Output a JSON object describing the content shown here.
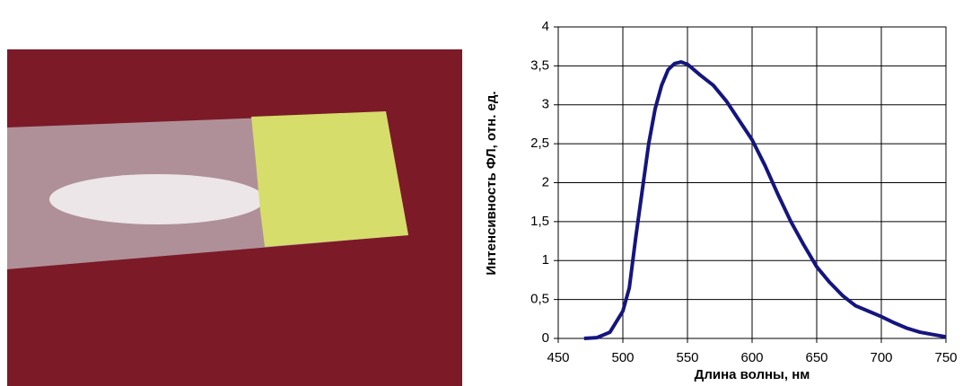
{
  "chart_data": {
    "type": "line",
    "x_label": "Длина волны, нм",
    "y_label": "Интенсивность ФЛ, отн. ед.",
    "x": [
      470,
      480,
      490,
      500,
      505,
      510,
      515,
      520,
      525,
      530,
      535,
      540,
      545,
      550,
      555,
      560,
      570,
      580,
      590,
      600,
      610,
      620,
      630,
      640,
      650,
      660,
      670,
      680,
      690,
      700,
      710,
      720,
      730,
      740,
      750
    ],
    "series": [
      {
        "color": "#15157f",
        "values": [
          0,
          0.01,
          0.08,
          0.35,
          0.65,
          1.3,
          1.9,
          2.5,
          2.95,
          3.25,
          3.45,
          3.53,
          3.55,
          3.52,
          3.45,
          3.38,
          3.25,
          3.05,
          2.8,
          2.55,
          2.22,
          1.85,
          1.5,
          1.2,
          0.92,
          0.72,
          0.55,
          0.42,
          0.35,
          0.28,
          0.2,
          0.13,
          0.08,
          0.05,
          0.02
        ]
      }
    ],
    "xlim": [
      450,
      750
    ],
    "xticks": [
      450,
      500,
      550,
      600,
      650,
      700,
      750
    ],
    "ylim": [
      0,
      4
    ],
    "yticks": [
      0,
      {
        "value": 0.5,
        "label": "0,5"
      },
      1,
      {
        "value": 1.5,
        "label": "1,5"
      },
      2,
      {
        "value": 2.5,
        "label": "2,5"
      },
      3,
      {
        "value": 3.5,
        "label": "3,5"
      },
      4
    ],
    "grid": true
  }
}
